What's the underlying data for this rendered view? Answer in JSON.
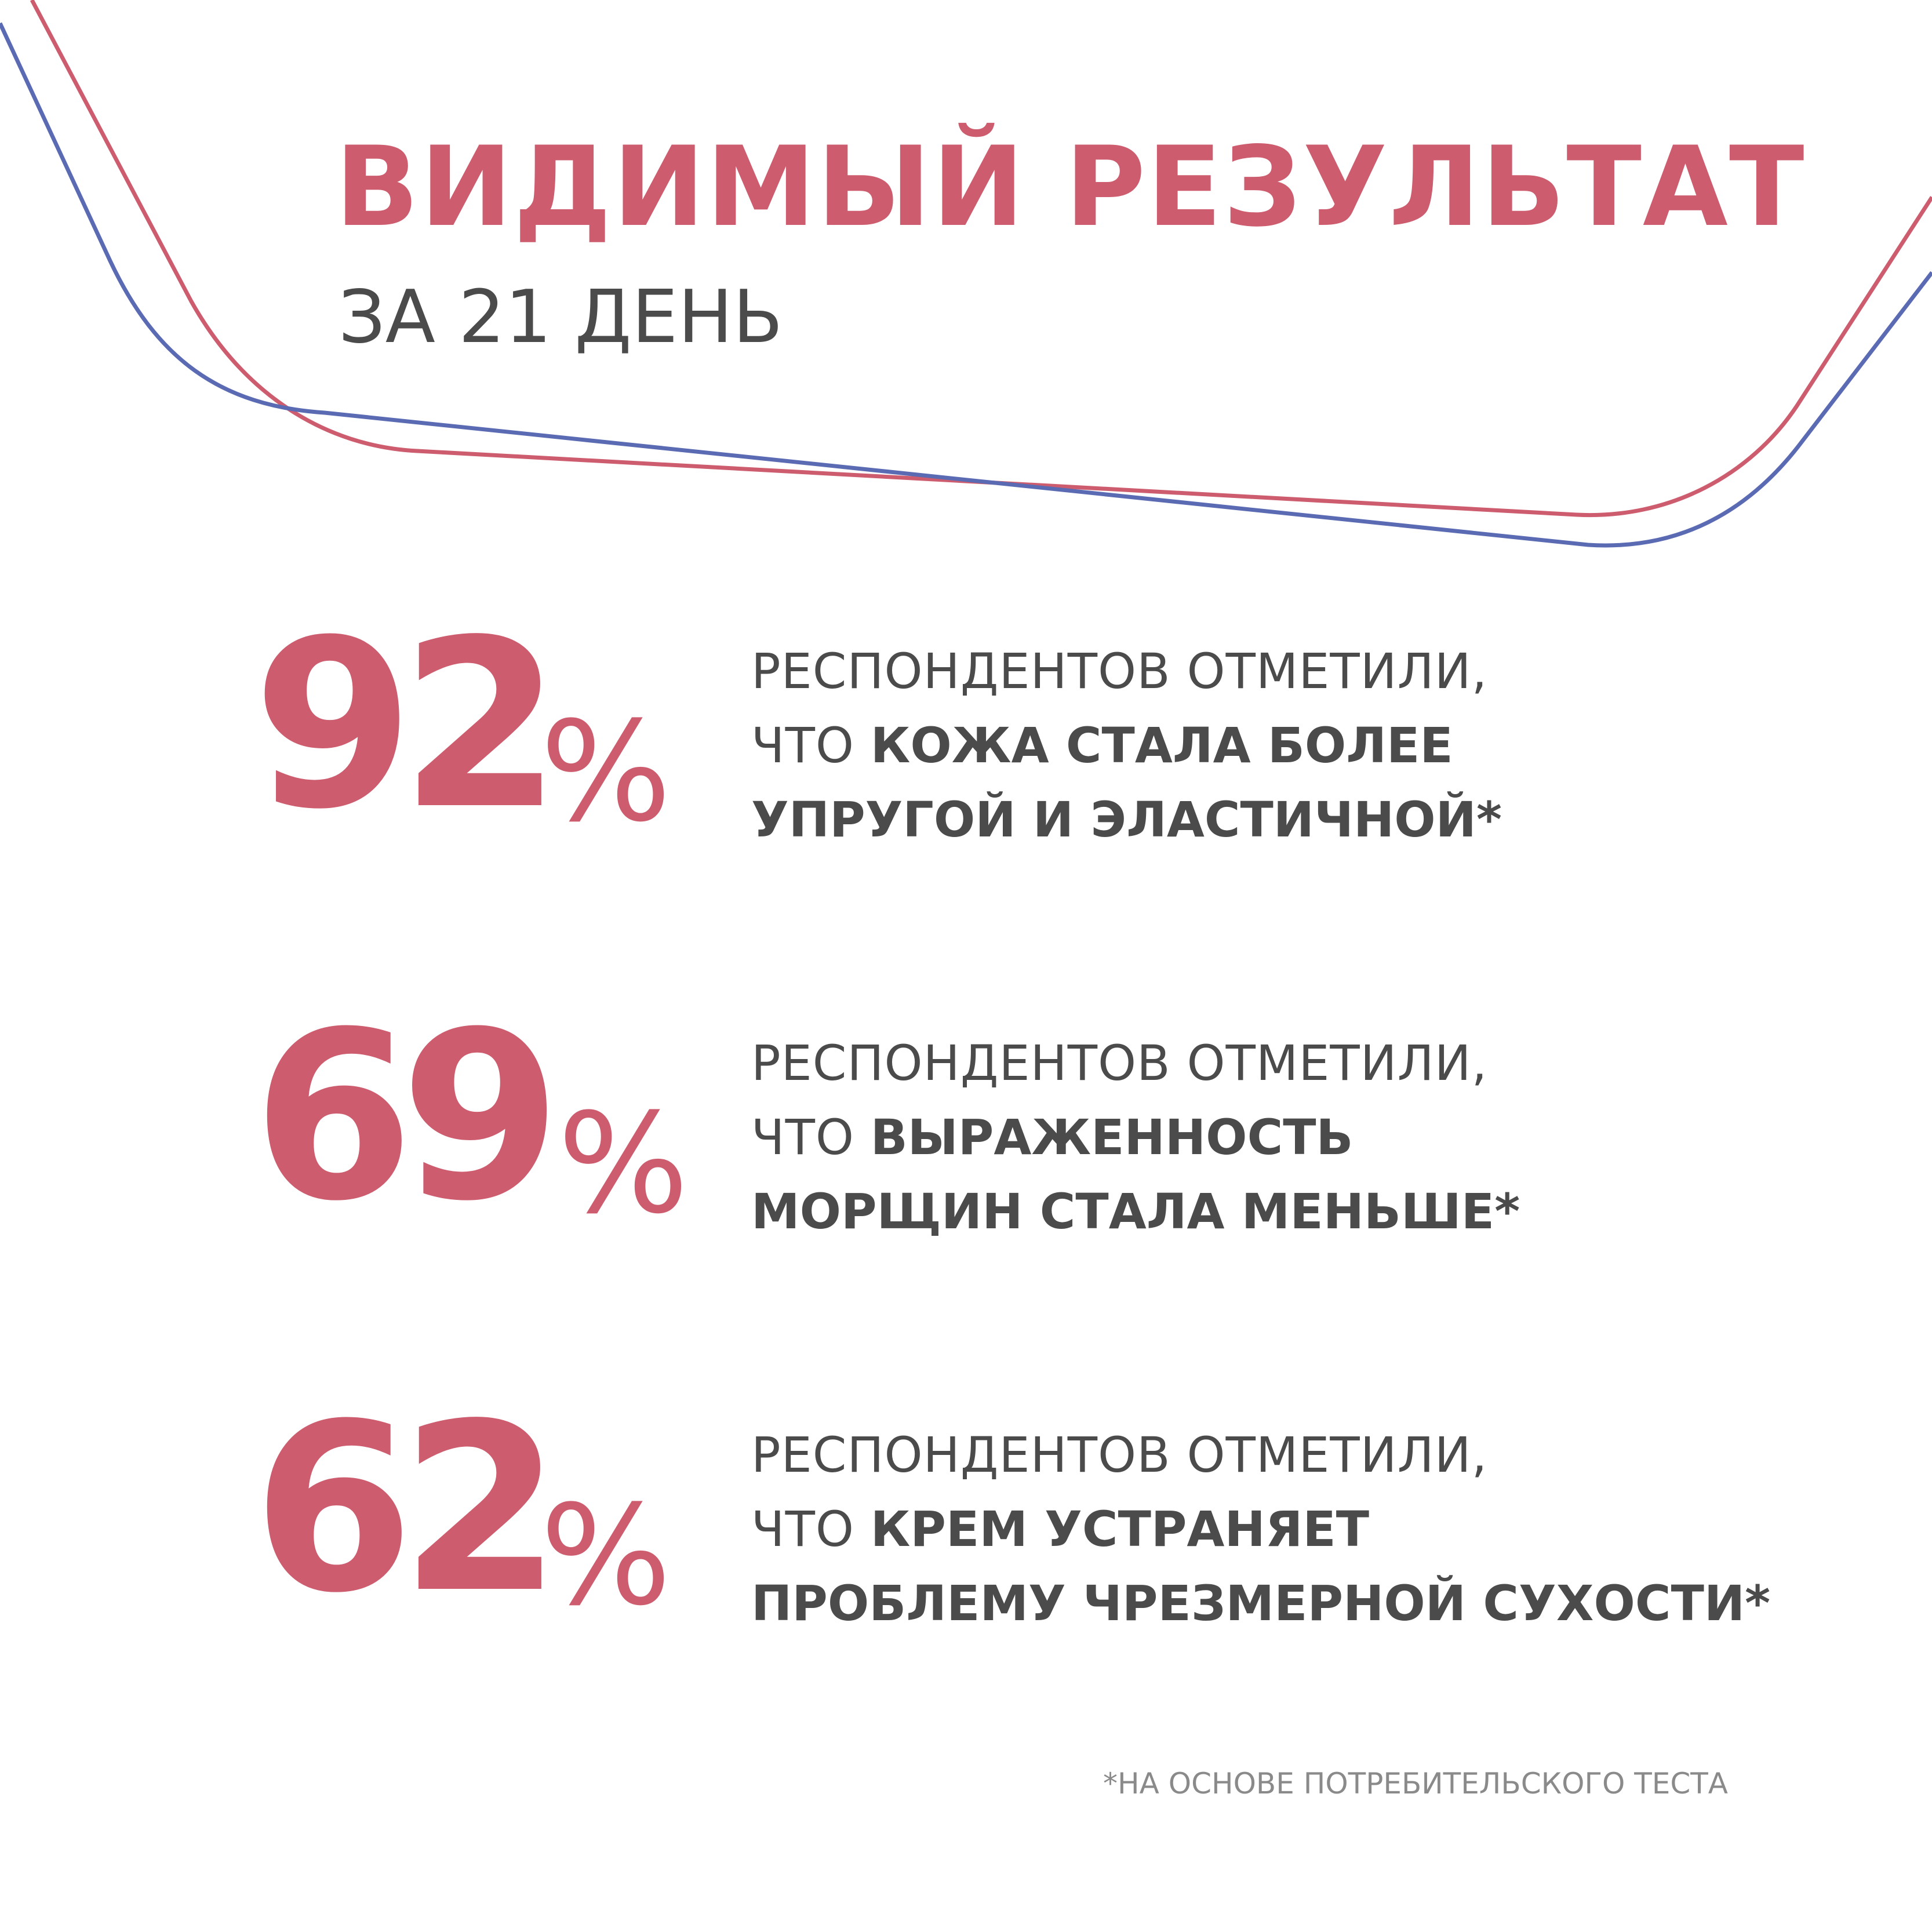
{
  "colors": {
    "accent": "#cd5d6e",
    "line_red": "#cd5d6e",
    "line_blue": "#5b6bb3",
    "text_dark": "#4b4b4b",
    "text_muted": "#8a8a8a",
    "background": "#ffffff"
  },
  "header": {
    "title": "ВИДИМЫЙ РЕЗУЛЬТАТ",
    "subtitle": "ЗА 21 ДЕНЬ"
  },
  "stats": [
    {
      "value": "92",
      "unit": "%",
      "line1": "РЕСПОНДЕНТОВ ОТМЕТИЛИ,",
      "line2_prefix": "ЧТО ",
      "line2_bold": "КОЖА СТАЛА БОЛЕЕ",
      "line3_bold": "УПРУГОЙ И ЭЛАСТИЧНОЙ*"
    },
    {
      "value": "69",
      "unit": "%",
      "line1": "РЕСПОНДЕНТОВ ОТМЕТИЛИ,",
      "line2_prefix": "ЧТО ",
      "line2_bold": "ВЫРАЖЕННОСТЬ",
      "line3_bold": "МОРЩИН СТАЛА МЕНЬШЕ*"
    },
    {
      "value": "62",
      "unit": "%",
      "line1": "РЕСПОНДЕНТОВ ОТМЕТИЛИ,",
      "line2_prefix": "ЧТО ",
      "line2_bold": "КРЕМ УСТРАНЯЕТ",
      "line3_bold": "ПРОБЛЕМУ ЧРЕЗМЕРНОЙ СУХОСТИ*"
    }
  ],
  "footnote": "*НА ОСНОВЕ ПОТРЕБИТЕЛЬСКОГО ТЕСТА"
}
